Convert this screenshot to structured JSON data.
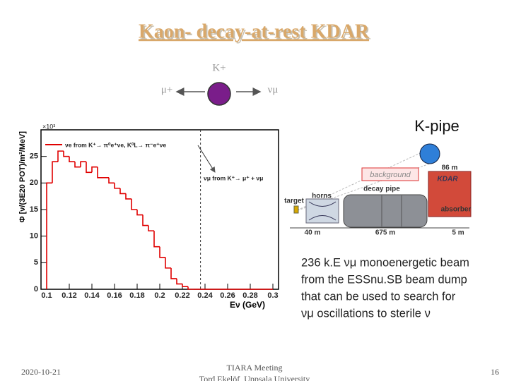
{
  "slide": {
    "title": "Kaon- decay-at-rest KDAR",
    "decay": {
      "parent": "K+",
      "muon": "μ+",
      "neutrino": "νμ"
    },
    "kpipe": {
      "title": "K-pipe",
      "background": "background",
      "kdar": "KDAR",
      "distance_top": "86 m",
      "decay_pipe": "decay pipe",
      "horns": "horns",
      "target": "target",
      "absorber": "absorber",
      "len_target": "40 m",
      "len_pipe": "675 m",
      "len_absorber": "5 m"
    },
    "text": [
      "236 k.E νμ monoenergetic beam",
      "from the ESSnu.SB beam dump",
      "that can be used to search for",
      "νμ oscillations to sterile ν"
    ],
    "footer": {
      "date": "2020-10-21",
      "meeting": "TIARA Meeting",
      "author": "Tord Ekelöf, Uppsala University",
      "page": "16"
    }
  },
  "chart_data": {
    "type": "histogram",
    "bins": [
      0.1,
      0.105,
      0.11,
      0.115,
      0.12,
      0.125,
      0.13,
      0.135,
      0.14,
      0.145,
      0.15,
      0.155,
      0.16,
      0.165,
      0.17,
      0.175,
      0.18,
      0.185,
      0.19,
      0.195,
      0.2,
      0.205,
      0.21,
      0.215,
      0.22,
      0.225,
      0.23,
      0.235,
      0.24,
      0.245,
      0.25,
      0.255,
      0.26,
      0.265,
      0.27,
      0.275,
      0.28,
      0.285,
      0.29,
      0.295,
      0.3
    ],
    "values": [
      20,
      24,
      26,
      25,
      24,
      23,
      24,
      22,
      23,
      21,
      21,
      20,
      19,
      18,
      17,
      15,
      14,
      12,
      11,
      8,
      6,
      4,
      2,
      1,
      0.5,
      0,
      0,
      0,
      0,
      0,
      0,
      0,
      0,
      0,
      0,
      0,
      0,
      0,
      0,
      0
    ],
    "color": "#e00000",
    "xlim": [
      0.095,
      0.305
    ],
    "ylim": [
      0,
      30
    ],
    "xticks": [
      0.1,
      0.12,
      0.14,
      0.16,
      0.18,
      0.2,
      0.22,
      0.24,
      0.26,
      0.28,
      0.3
    ],
    "yticks": [
      0,
      5,
      10,
      15,
      20,
      25
    ],
    "x_label": "Eν (GeV)",
    "y_label": "Φ [ν/(3E20 POT)/m²/MeV]",
    "y_scale": "×10³",
    "legend": "νe from K⁺→ π⁰e⁺νe, K⁰L→ π⁻e⁺νe",
    "annotation": "νμ from K⁺→ μ⁺ + νμ",
    "annotation_x": 0.236
  }
}
